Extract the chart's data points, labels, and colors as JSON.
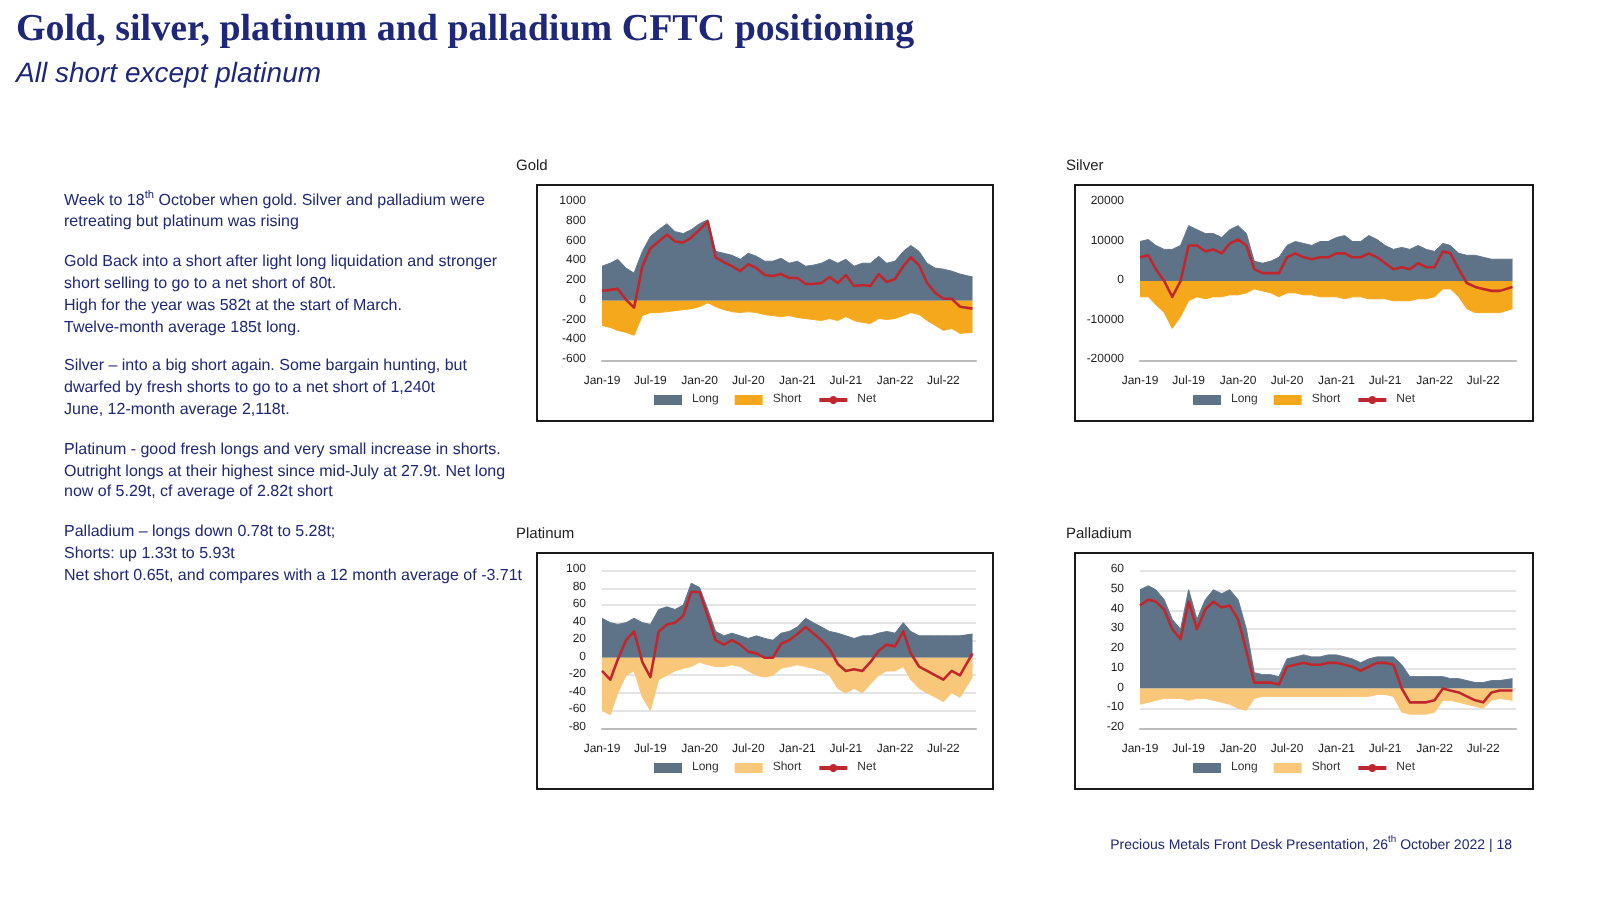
{
  "chart_data": [
    {
      "type": "other",
      "title": "Gold, silver, platinum and palladium CFTC positioning",
      "subtitle": "All short except platinum",
      "annotations": [
        "Week to 18$^{th}$ October when gold. Silver and palladium were retreating but platinum was rising",
        "Gold Back into a short after light long liquidation and stronger short selling to go to a net short of 80t.\nHigh for the year was 582t at the start of March.\nTwelve-month  average 185t long.",
        "Silver – into a big short again.  Some bargain hunting, but dwarfed by fresh shorts to go to a net short of 1,240t\nJune, 12-month average 2,118t.",
        "Platinum  - good fresh longs and very small increase in shorts.  Outright longs at their highest since mid-July at 27.9t. Net long now of 5.29t, cf average  of 2.82t short",
        "Palladium  – longs down 0.78t to 5.28t;\nShorts: up 1.33t to 5.93t\nNet short 0.65t, and compares with a 12 month average of -3.71t",
        "Precious Metals Front Desk Presentation, 26$^{th}$ October 2022  |  18"
      ]
    },
    {
      "type": "area",
      "title": "Gold",
      "legend": "bottom",
      "grid": false,
      "x": [
        "2019-01-01",
        "2019-02-01",
        "2019-03-01",
        "2019-04-01",
        "2019-05-01",
        "2019-06-01",
        "2019-07-01",
        "2019-08-01",
        "2019-09-01",
        "2019-10-01",
        "2019-11-01",
        "2019-12-01",
        "2020-01-01",
        "2020-02-01",
        "2020-03-01",
        "2020-04-01",
        "2020-05-01",
        "2020-06-01",
        "2020-07-01",
        "2020-08-01",
        "2020-09-01",
        "2020-10-01",
        "2020-11-01",
        "2020-12-01",
        "2021-01-01",
        "2021-02-01",
        "2021-03-01",
        "2021-04-01",
        "2021-05-01",
        "2021-06-01",
        "2021-07-01",
        "2021-08-01",
        "2021-09-01",
        "2021-10-01",
        "2021-11-01",
        "2021-12-01",
        "2022-01-01",
        "2022-02-01",
        "2022-03-01",
        "2022-04-01",
        "2022-05-01",
        "2022-06-01",
        "2022-07-01",
        "2022-08-01",
        "2022-09-01",
        "2022-10-18"
      ],
      "xlim": [
        "2019-01-01",
        "2022-10-31"
      ],
      "xticks": [
        {
          "value": "2019-01-01",
          "label": "Jan-19"
        },
        {
          "value": "2019-07-01",
          "label": "Jul-19"
        },
        {
          "value": "2020-01-01",
          "label": "Jan-20"
        },
        {
          "value": "2020-07-01",
          "label": "Jul-20"
        },
        {
          "value": "2021-01-01",
          "label": "Jan-21"
        },
        {
          "value": "2021-07-01",
          "label": "Jul-21"
        },
        {
          "value": "2022-01-01",
          "label": "Jan-22"
        },
        {
          "value": "2022-07-01",
          "label": "Jul-22"
        }
      ],
      "ylim": [
        -600,
        1000
      ],
      "yticks": [
        -600,
        -400,
        -200,
        0,
        200,
        400,
        600,
        800,
        1000
      ],
      "series": [
        {
          "name": "Long",
          "type": "area",
          "color": "#5f7388",
          "values": [
            350,
            380,
            420,
            330,
            280,
            500,
            650,
            720,
            780,
            700,
            680,
            720,
            780,
            820,
            500,
            480,
            460,
            420,
            480,
            450,
            400,
            400,
            430,
            380,
            400,
            350,
            360,
            380,
            420,
            380,
            420,
            350,
            380,
            380,
            450,
            380,
            400,
            500,
            560,
            500,
            380,
            330,
            320,
            300,
            270,
            240
          ]
        },
        {
          "name": "Short",
          "type": "area",
          "color": "#f5a81c",
          "values": [
            -250,
            -270,
            -300,
            -320,
            -350,
            -150,
            -120,
            -120,
            -110,
            -100,
            -90,
            -80,
            -60,
            -20,
            -60,
            -90,
            -110,
            -120,
            -110,
            -120,
            -140,
            -150,
            -160,
            -150,
            -170,
            -180,
            -190,
            -200,
            -180,
            -200,
            -160,
            -200,
            -220,
            -230,
            -180,
            -190,
            -180,
            -150,
            -120,
            -140,
            -200,
            -250,
            -300,
            -280,
            -330,
            -320
          ]
        },
        {
          "name": "Net",
          "type": "line",
          "color": "#c0272d",
          "values": [
            100,
            110,
            120,
            10,
            -70,
            350,
            530,
            600,
            670,
            600,
            590,
            640,
            720,
            800,
            440,
            390,
            350,
            300,
            370,
            330,
            260,
            250,
            270,
            230,
            230,
            170,
            170,
            180,
            240,
            180,
            260,
            150,
            160,
            150,
            270,
            190,
            220,
            350,
            440,
            360,
            180,
            80,
            20,
            20,
            -60,
            -80
          ]
        }
      ]
    },
    {
      "type": "area",
      "title": "Silver",
      "legend": "bottom",
      "grid": false,
      "x": [
        "2019-01-01",
        "2019-02-01",
        "2019-03-01",
        "2019-04-01",
        "2019-05-01",
        "2019-06-01",
        "2019-07-01",
        "2019-08-01",
        "2019-09-01",
        "2019-10-01",
        "2019-11-01",
        "2019-12-01",
        "2020-01-01",
        "2020-02-01",
        "2020-03-01",
        "2020-04-01",
        "2020-05-01",
        "2020-06-01",
        "2020-07-01",
        "2020-08-01",
        "2020-09-01",
        "2020-10-01",
        "2020-11-01",
        "2020-12-01",
        "2021-01-01",
        "2021-02-01",
        "2021-03-01",
        "2021-04-01",
        "2021-05-01",
        "2021-06-01",
        "2021-07-01",
        "2021-08-01",
        "2021-09-01",
        "2021-10-01",
        "2021-11-01",
        "2021-12-01",
        "2022-01-01",
        "2022-02-01",
        "2022-03-01",
        "2022-04-01",
        "2022-05-01",
        "2022-06-01",
        "2022-07-01",
        "2022-08-01",
        "2022-09-01",
        "2022-10-18"
      ],
      "xlim": [
        "2019-01-01",
        "2022-10-31"
      ],
      "xticks": [
        {
          "value": "2019-01-01",
          "label": "Jan-19"
        },
        {
          "value": "2019-07-01",
          "label": "Jul-19"
        },
        {
          "value": "2020-01-01",
          "label": "Jan-20"
        },
        {
          "value": "2020-07-01",
          "label": "Jul-20"
        },
        {
          "value": "2021-01-01",
          "label": "Jan-21"
        },
        {
          "value": "2021-07-01",
          "label": "Jul-21"
        },
        {
          "value": "2022-01-01",
          "label": "Jan-22"
        },
        {
          "value": "2022-07-01",
          "label": "Jul-22"
        }
      ],
      "ylim": [
        -20000,
        20000
      ],
      "yticks": [
        -20000,
        -10000,
        0,
        10000,
        20000
      ],
      "series": [
        {
          "name": "Long",
          "type": "area",
          "color": "#5f7388",
          "values": [
            10000,
            10500,
            9000,
            8000,
            8000,
            9000,
            14000,
            13000,
            12000,
            12000,
            11000,
            13000,
            14000,
            12000,
            5000,
            4500,
            5000,
            6000,
            9000,
            10000,
            9500,
            9000,
            10000,
            10000,
            11000,
            11500,
            10000,
            10000,
            11500,
            10500,
            9000,
            8000,
            8500,
            8000,
            9000,
            8000,
            7500,
            9500,
            9000,
            7000,
            6500,
            6500,
            6000,
            5500,
            5500,
            5500
          ]
        },
        {
          "name": "Short",
          "type": "area",
          "color": "#f5a81c",
          "values": [
            -4000,
            -4000,
            -6000,
            -8000,
            -12000,
            -9000,
            -5000,
            -4000,
            -4500,
            -4000,
            -4000,
            -3500,
            -3500,
            -3000,
            -2000,
            -2500,
            -3000,
            -4000,
            -3000,
            -3000,
            -3500,
            -3500,
            -4000,
            -4000,
            -4000,
            -4500,
            -4000,
            -4000,
            -4500,
            -4500,
            -4500,
            -5000,
            -5000,
            -5000,
            -4500,
            -4500,
            -4000,
            -2000,
            -2000,
            -4000,
            -7000,
            -8000,
            -8000,
            -8000,
            -8000,
            -7000
          ]
        },
        {
          "name": "Net",
          "type": "line",
          "color": "#c0272d",
          "values": [
            6000,
            6500,
            3000,
            0,
            -4000,
            0,
            9000,
            9000,
            7500,
            8000,
            7000,
            9500,
            10500,
            9000,
            3000,
            2000,
            2000,
            2000,
            6000,
            7000,
            6000,
            5500,
            6000,
            6000,
            7000,
            7000,
            6000,
            6000,
            7000,
            6000,
            4500,
            3000,
            3500,
            3000,
            4500,
            3500,
            3500,
            7500,
            7000,
            3000,
            -500,
            -1500,
            -2000,
            -2500,
            -2500,
            -1500
          ]
        }
      ]
    },
    {
      "type": "area",
      "title": "Platinum",
      "legend": "bottom",
      "grid": "y",
      "x": [
        "2019-01-01",
        "2019-02-01",
        "2019-03-01",
        "2019-04-01",
        "2019-05-01",
        "2019-06-01",
        "2019-07-01",
        "2019-08-01",
        "2019-09-01",
        "2019-10-01",
        "2019-11-01",
        "2019-12-01",
        "2020-01-01",
        "2020-02-01",
        "2020-03-01",
        "2020-04-01",
        "2020-05-01",
        "2020-06-01",
        "2020-07-01",
        "2020-08-01",
        "2020-09-01",
        "2020-10-01",
        "2020-11-01",
        "2020-12-01",
        "2021-01-01",
        "2021-02-01",
        "2021-03-01",
        "2021-04-01",
        "2021-05-01",
        "2021-06-01",
        "2021-07-01",
        "2021-08-01",
        "2021-09-01",
        "2021-10-01",
        "2021-11-01",
        "2021-12-01",
        "2022-01-01",
        "2022-02-01",
        "2022-03-01",
        "2022-04-01",
        "2022-05-01",
        "2022-06-01",
        "2022-07-01",
        "2022-08-01",
        "2022-09-01",
        "2022-10-18"
      ],
      "xlim": [
        "2019-01-01",
        "2022-10-31"
      ],
      "xticks": [
        {
          "value": "2019-01-01",
          "label": "Jan-19"
        },
        {
          "value": "2019-07-01",
          "label": "Jul-19"
        },
        {
          "value": "2020-01-01",
          "label": "Jan-20"
        },
        {
          "value": "2020-07-01",
          "label": "Jul-20"
        },
        {
          "value": "2021-01-01",
          "label": "Jan-21"
        },
        {
          "value": "2021-07-01",
          "label": "Jul-21"
        },
        {
          "value": "2022-01-01",
          "label": "Jan-22"
        },
        {
          "value": "2022-07-01",
          "label": "Jul-22"
        }
      ],
      "ylim": [
        -80,
        100
      ],
      "yticks": [
        -80,
        -60,
        -40,
        -20,
        0,
        20,
        40,
        60,
        80,
        100
      ],
      "series": [
        {
          "name": "Long",
          "type": "area",
          "color": "#5f7388",
          "values": [
            45,
            40,
            38,
            40,
            45,
            40,
            38,
            55,
            58,
            55,
            60,
            85,
            80,
            55,
            30,
            25,
            28,
            25,
            22,
            25,
            22,
            20,
            28,
            30,
            35,
            45,
            40,
            35,
            30,
            28,
            25,
            22,
            25,
            25,
            28,
            30,
            28,
            40,
            30,
            25,
            25,
            25,
            25,
            25,
            25,
            27
          ]
        },
        {
          "name": "Short",
          "type": "area",
          "color": "#f9c77a",
          "values": [
            -60,
            -65,
            -40,
            -20,
            -15,
            -45,
            -60,
            -25,
            -20,
            -15,
            -12,
            -10,
            -5,
            -8,
            -10,
            -10,
            -8,
            -10,
            -15,
            -20,
            -22,
            -20,
            -12,
            -10,
            -8,
            -10,
            -12,
            -15,
            -20,
            -35,
            -40,
            -35,
            -40,
            -30,
            -20,
            -15,
            -15,
            -10,
            -25,
            -35,
            -40,
            -45,
            -50,
            -40,
            -45,
            -22
          ]
        },
        {
          "name": "Net",
          "type": "line",
          "color": "#c0272d",
          "values": [
            -15,
            -25,
            -2,
            20,
            30,
            -5,
            -22,
            30,
            38,
            40,
            48,
            75,
            75,
            47,
            20,
            15,
            20,
            15,
            7,
            5,
            0,
            0,
            16,
            20,
            27,
            35,
            28,
            20,
            10,
            -7,
            -15,
            -13,
            -15,
            -5,
            8,
            15,
            13,
            30,
            5,
            -10,
            -15,
            -20,
            -25,
            -15,
            -20,
            5
          ]
        }
      ]
    },
    {
      "type": "area",
      "title": "Palladium",
      "legend": "bottom",
      "grid": "y",
      "x": [
        "2019-01-01",
        "2019-02-01",
        "2019-03-01",
        "2019-04-01",
        "2019-05-01",
        "2019-06-01",
        "2019-07-01",
        "2019-08-01",
        "2019-09-01",
        "2019-10-01",
        "2019-11-01",
        "2019-12-01",
        "2020-01-01",
        "2020-02-01",
        "2020-03-01",
        "2020-04-01",
        "2020-05-01",
        "2020-06-01",
        "2020-07-01",
        "2020-08-01",
        "2020-09-01",
        "2020-10-01",
        "2020-11-01",
        "2020-12-01",
        "2021-01-01",
        "2021-02-01",
        "2021-03-01",
        "2021-04-01",
        "2021-05-01",
        "2021-06-01",
        "2021-07-01",
        "2021-08-01",
        "2021-09-01",
        "2021-10-01",
        "2021-11-01",
        "2021-12-01",
        "2022-01-01",
        "2022-02-01",
        "2022-03-01",
        "2022-04-01",
        "2022-05-01",
        "2022-06-01",
        "2022-07-01",
        "2022-08-01",
        "2022-09-01",
        "2022-10-18"
      ],
      "xlim": [
        "2019-01-01",
        "2022-10-31"
      ],
      "xticks": [
        {
          "value": "2019-01-01",
          "label": "Jan-19"
        },
        {
          "value": "2019-07-01",
          "label": "Jul-19"
        },
        {
          "value": "2020-01-01",
          "label": "Jan-20"
        },
        {
          "value": "2020-07-01",
          "label": "Jul-20"
        },
        {
          "value": "2021-01-01",
          "label": "Jan-21"
        },
        {
          "value": "2021-07-01",
          "label": "Jul-21"
        },
        {
          "value": "2022-01-01",
          "label": "Jan-22"
        },
        {
          "value": "2022-07-01",
          "label": "Jul-22"
        }
      ],
      "ylim": [
        -20,
        60
      ],
      "yticks": [
        -20,
        -10,
        0,
        10,
        20,
        30,
        40,
        50,
        60
      ],
      "series": [
        {
          "name": "Long",
          "type": "area",
          "color": "#5f7388",
          "values": [
            50,
            52,
            50,
            45,
            35,
            30,
            50,
            35,
            45,
            50,
            48,
            50,
            45,
            30,
            8,
            7,
            7,
            6,
            15,
            16,
            17,
            16,
            16,
            17,
            17,
            16,
            15,
            13,
            15,
            16,
            16,
            16,
            12,
            6,
            6,
            6,
            6,
            6,
            5,
            5,
            4,
            3,
            3,
            4,
            4,
            5
          ]
        },
        {
          "name": "Short",
          "type": "area",
          "color": "#f9c77a",
          "values": [
            -8,
            -7,
            -6,
            -5,
            -5,
            -5,
            -6,
            -5,
            -5,
            -6,
            -7,
            -8,
            -10,
            -11,
            -5,
            -4,
            -4,
            -4,
            -4,
            -4,
            -4,
            -4,
            -4,
            -4,
            -4,
            -4,
            -4,
            -4,
            -4,
            -3,
            -3,
            -4,
            -12,
            -13,
            -13,
            -13,
            -12,
            -6,
            -6,
            -7,
            -8,
            -9,
            -10,
            -6,
            -5,
            -6
          ]
        },
        {
          "name": "Net",
          "type": "line",
          "color": "#c0272d",
          "values": [
            42,
            45,
            44,
            40,
            30,
            25,
            44,
            30,
            40,
            44,
            41,
            42,
            35,
            19,
            3,
            3,
            3,
            2,
            11,
            12,
            13,
            12,
            12,
            13,
            13,
            12,
            11,
            9,
            11,
            13,
            13,
            12,
            0,
            -7,
            -7,
            -7,
            -6,
            0,
            -1,
            -2,
            -4,
            -6,
            -7,
            -2,
            -1,
            -1
          ]
        }
      ]
    }
  ]
}
